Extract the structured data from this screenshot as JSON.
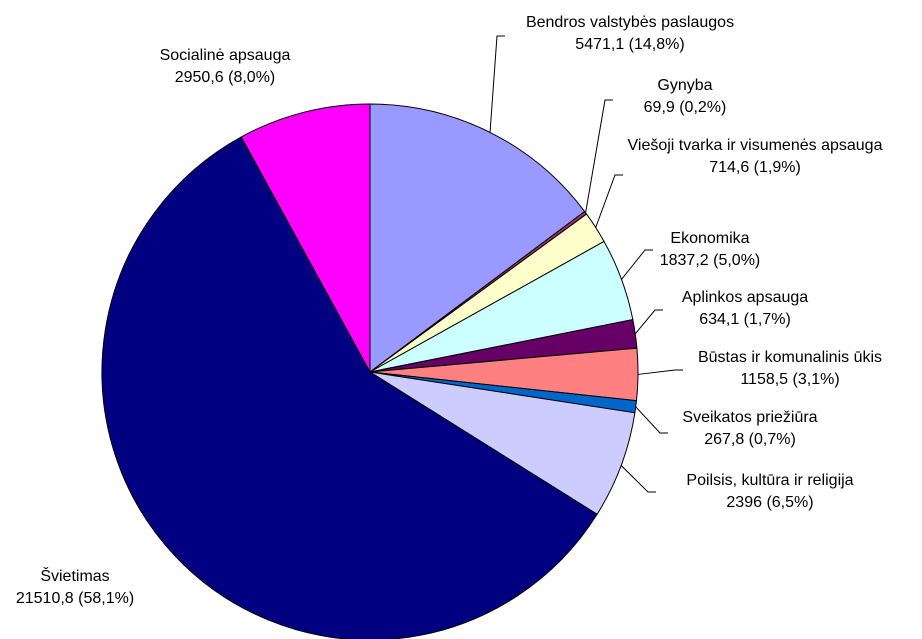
{
  "chart_data": {
    "type": "pie",
    "categories": [
      "Bendros valstybės paslaugos",
      "Gynyba",
      "Viešoji tvarka ir visumenės apsauga",
      "Ekonomika",
      "Aplinkos apsauga",
      "Būstas ir komunalinis ūkis",
      "Sveikatos priežiūra",
      "Poilsis, kultūra ir religija",
      "Švietimas",
      "Socialinė apsauga"
    ],
    "values": [
      5471.1,
      69.9,
      714.6,
      1837.2,
      634.1,
      1158.5,
      267.8,
      2396,
      21510.8,
      2950.6
    ],
    "value_labels": [
      "5471,1 (14,8%)",
      "69,9 (0,2%)",
      "714,6 (1,9%)",
      "1837,2 (5,0%)",
      "634,1 (1,7%)",
      "1158,5 (3,1%)",
      "267,8 (0,7%)",
      "2396 (6,5%)",
      "21510,8 (58,1%)",
      "2950,6 (8,0%)"
    ],
    "colors": [
      "#9999ff",
      "#993366",
      "#ffffcc",
      "#ccffff",
      "#660066",
      "#ff8080",
      "#0066cc",
      "#ccccff",
      "#000080",
      "#ff00ff"
    ]
  }
}
